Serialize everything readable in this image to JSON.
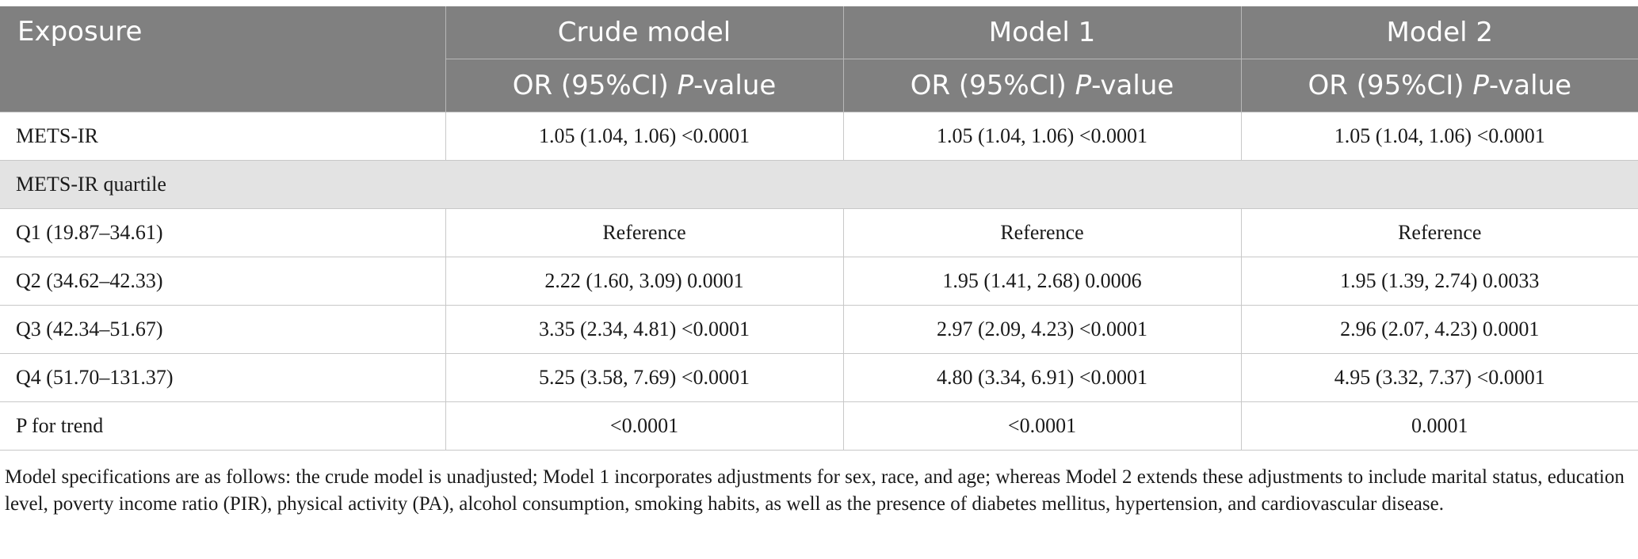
{
  "header": {
    "exposure": "Exposure",
    "columns": [
      "Crude model",
      "Model 1",
      "Model 2"
    ],
    "subheader_prefix": "OR (95%CI) ",
    "subheader_italic": "P",
    "subheader_suffix": "-value"
  },
  "rows": [
    {
      "label": "METS-IR",
      "values": [
        "1.05 (1.04, 1.06) <0.0001",
        "1.05 (1.04, 1.06) <0.0001",
        "1.05 (1.04, 1.06) <0.0001"
      ]
    },
    {
      "group": "METS-IR quartile"
    },
    {
      "label": "Q1 (19.87–34.61)",
      "values": [
        "Reference",
        "Reference",
        "Reference"
      ]
    },
    {
      "label": "Q2 (34.62–42.33)",
      "values": [
        "2.22 (1.60, 3.09) 0.0001",
        "1.95 (1.41, 2.68) 0.0006",
        "1.95 (1.39, 2.74) 0.0033"
      ]
    },
    {
      "label": "Q3 (42.34–51.67)",
      "values": [
        "3.35 (2.34, 4.81) <0.0001",
        "2.97 (2.09, 4.23) <0.0001",
        "2.96 (2.07, 4.23) 0.0001"
      ]
    },
    {
      "label": "Q4 (51.70–131.37)",
      "values": [
        "5.25 (3.58, 7.69) <0.0001",
        "4.80 (3.34, 6.91) <0.0001",
        "4.95 (3.32, 7.37) <0.0001"
      ]
    },
    {
      "label": "P for trend",
      "values": [
        "<0.0001",
        "<0.0001",
        "0.0001"
      ]
    }
  ],
  "footnote": "Model specifications are as follows: the crude model is unadjusted; Model 1 incorporates adjustments for sex, race, and age; whereas Model 2 extends these adjustments to include marital status, education level, poverty income ratio (PIR), physical activity (PA), alcohol consumption, smoking habits, as well as the presence of diabetes mellitus, hypertension, and cardiovascular disease."
}
